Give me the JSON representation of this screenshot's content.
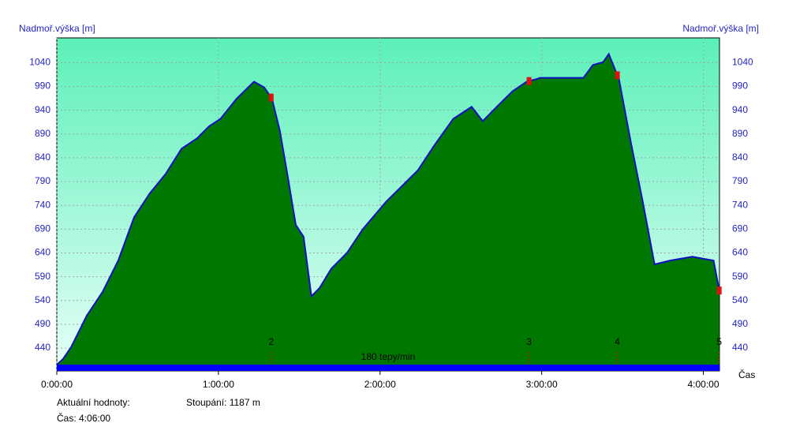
{
  "chart_data": {
    "type": "area",
    "y_label": "Nadmoř.výška [m]",
    "x_label": "Čas",
    "x": [
      0,
      2.3,
      5.3,
      11.1,
      17.0,
      22.8,
      28.7,
      34.5,
      40.4,
      46.3,
      52.1,
      56.5,
      60.8,
      66.7,
      73.2,
      77.0,
      79.9,
      82.8,
      85.8,
      88.7,
      91.6,
      94.5,
      97.5,
      101.9,
      107.7,
      113.6,
      122.3,
      128.2,
      134.1,
      139.9,
      147.2,
      154.0,
      158.1,
      163.3,
      169.2,
      174.4,
      177.9,
      179.4,
      195.5,
      199.0,
      202.8,
      204.9,
      208.7,
      213.1,
      217.5,
      221.9,
      227.7,
      235.9,
      243.8,
      245.9
    ],
    "values": [
      405,
      417,
      442,
      508,
      558,
      624,
      715,
      765,
      806,
      859,
      881,
      906,
      922,
      964,
      1000,
      988,
      964,
      897,
      798,
      699,
      674,
      549,
      566,
      607,
      640,
      690,
      748,
      781,
      814,
      864,
      922,
      947,
      917,
      947,
      980,
      1000,
      1005,
      1008,
      1008,
      1035,
      1041,
      1058,
      1005,
      872,
      748,
      616,
      624,
      632,
      624,
      561
    ],
    "color": "#007800",
    "line_color": "#1010c0",
    "xlim": [
      0,
      246
    ],
    "ylim": [
      392,
      1092
    ],
    "xticks": [
      {
        "value": 0,
        "label": "0:00:00"
      },
      {
        "value": 60,
        "label": "1:00:00"
      },
      {
        "value": 120,
        "label": "2:00:00"
      },
      {
        "value": 180,
        "label": "3:00:00"
      },
      {
        "value": 240,
        "label": "4:00:00"
      }
    ],
    "yticks": [
      440,
      490,
      540,
      590,
      640,
      690,
      740,
      790,
      840,
      890,
      940,
      990,
      1040
    ],
    "grid": true,
    "laps": [
      {
        "label": "2",
        "x": 79.6
      },
      {
        "label": "3",
        "x": 175.3
      },
      {
        "label": "4",
        "x": 208.1
      },
      {
        "label": "5",
        "x": 245.9
      }
    ],
    "band_label": "180 tepy/min"
  },
  "summary": {
    "current_label": "Aktuální hodnoty:",
    "ascent": "Stoupání: 1187 m",
    "time": "Čas: 4:06:00"
  }
}
